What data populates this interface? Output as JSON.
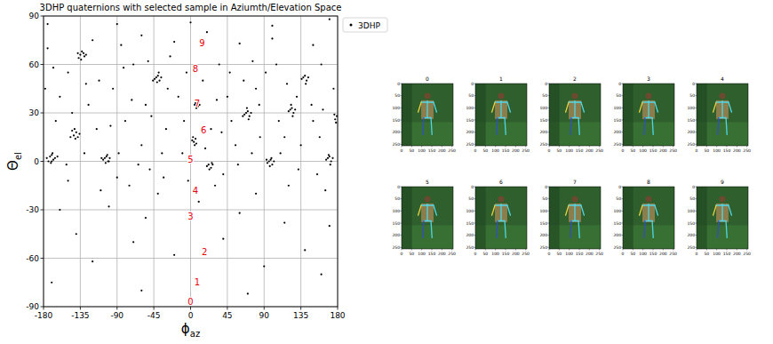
{
  "chart_data": [
    {
      "type": "scatter",
      "title": "3DHP quaternions with selected sample in Aziumth/Elevation Space",
      "x_label": {
        "text": "ϕ",
        "subscript": "az"
      },
      "y_label": {
        "text": "Θ",
        "subscript": "el"
      },
      "xlim": [
        -180,
        180
      ],
      "ylim": [
        -90,
        90
      ],
      "xticks": [
        -180,
        -135,
        -90,
        -45,
        0,
        45,
        90,
        135,
        180
      ],
      "yticks": [
        -90,
        -60,
        -30,
        0,
        30,
        60,
        90
      ],
      "grid": true,
      "legend": "right",
      "series": [
        {
          "name": "3DHP",
          "color": "#000000",
          "marker": "dot",
          "x": [
            -172,
            -168,
            -170,
            -174,
            -166,
            -171,
            -169,
            -176,
            -163,
            -170,
            -143,
            -140,
            -138,
            -145,
            -141,
            -136,
            -142,
            -147,
            -135,
            -131,
            -137,
            -130,
            -133,
            -138,
            -128,
            -134,
            -105,
            -101,
            -103,
            -107,
            -99,
            -104,
            -102,
            -109,
            -100,
            -42,
            -38,
            -40,
            -44,
            -36,
            -41,
            -39,
            -46,
            6,
            9,
            7,
            10,
            5,
            8,
            11,
            4,
            6,
            3,
            7,
            5,
            2,
            22,
            25,
            27,
            23,
            26,
            20,
            68,
            72,
            70,
            66,
            74,
            71,
            69,
            64,
            96,
            100,
            98,
            94,
            102,
            97,
            99,
            93,
            122,
            126,
            124,
            120,
            128,
            125,
            123,
            138,
            142,
            140,
            136,
            144,
            141,
            168,
            172,
            170,
            166,
            174,
            171,
            169,
            177,
            179,
            176,
            178,
            -178,
            -160,
            -150,
            -125,
            -115,
            -95,
            -80,
            -70,
            -60,
            -55,
            -30,
            -25,
            -15,
            -5,
            15,
            25,
            35,
            45,
            55,
            65,
            80,
            85,
            105,
            115,
            130,
            150,
            160,
            175,
            -175,
            -120,
            -85,
            -60,
            -20,
            20,
            60,
            100,
            150,
            -165,
            -130,
            -90,
            -50,
            -35,
            -10,
            40,
            50,
            75,
            110,
            135,
            155,
            -150,
            -110,
            -75,
            -40,
            30,
            80,
            120,
            165,
            -160,
            -100,
            -55,
            10,
            60,
            115,
            170,
            -140,
            -70,
            40,
            140,
            -120,
            -20,
            90,
            160,
            -170,
            -60,
            70,
            -175,
            -90,
            0,
            100,
            170,
            -145,
            -112,
            -88,
            -72,
            -48,
            -28,
            -8,
            18,
            32,
            48,
            58,
            84,
            92,
            108,
            118,
            132,
            148,
            158,
            -168,
            -152,
            -128,
            -98,
            -82,
            -64,
            -52,
            -33,
            -3,
            38,
            76,
            162
          ],
          "values": [
            3,
            1,
            4,
            0,
            2,
            -1,
            5,
            2,
            3,
            0,
            16,
            18,
            15,
            19,
            14,
            17,
            20,
            15,
            66,
            67,
            64,
            65,
            68,
            67,
            66,
            63,
            2,
            0,
            3,
            1,
            2,
            -1,
            4,
            2,
            0,
            52,
            50,
            53,
            51,
            52,
            49,
            55,
            50,
            36,
            34,
            33,
            37,
            35,
            38,
            35,
            12,
            14,
            15,
            11,
            10,
            13,
            -2,
            -4,
            -2,
            -5,
            -1,
            -3,
            30,
            28,
            31,
            29,
            30,
            26,
            33,
            28,
            0,
            -2,
            1,
            -1,
            0,
            -3,
            2,
            1,
            32,
            30,
            33,
            31,
            32,
            28,
            35,
            52,
            50,
            53,
            51,
            52,
            48,
            2,
            0,
            3,
            1,
            2,
            -2,
            4,
            26,
            28,
            29,
            24,
            45,
            40,
            55,
            35,
            20,
            45,
            25,
            60,
            10,
            35,
            20,
            65,
            40,
            55,
            50,
            20,
            60,
            40,
            10,
            50,
            45,
            15,
            60,
            15,
            40,
            25,
            60,
            45,
            70,
            75,
            72,
            78,
            74,
            80,
            73,
            76,
            72,
            25,
            5,
            -10,
            -5,
            5,
            5,
            -8,
            25,
            5,
            5,
            10,
            -8,
            -12,
            -18,
            -15,
            -20,
            -15,
            -20,
            -15,
            -18,
            -30,
            -28,
            -35,
            -25,
            -32,
            -38,
            -40,
            -45,
            -50,
            -48,
            -55,
            -62,
            -58,
            -65,
            -70,
            -75,
            -80,
            -82,
            85,
            85,
            86,
            84,
            88,
            30,
            50,
            5,
            38,
            28,
            45,
            25,
            8,
            38,
            55,
            -2,
            35,
            55,
            25,
            48,
            -5,
            35,
            15,
            58,
            -2,
            48,
            22,
            58,
            -2,
            62,
            -10,
            -12,
            18,
            62,
            32
          ]
        }
      ],
      "annotations": [
        {
          "text": "0",
          "x": 0,
          "y": -87
        },
        {
          "text": "1",
          "x": 8,
          "y": -75
        },
        {
          "text": "2",
          "x": 17,
          "y": -56
        },
        {
          "text": "3",
          "x": 0,
          "y": -34
        },
        {
          "text": "4",
          "x": 6,
          "y": -18
        },
        {
          "text": "5",
          "x": 0,
          "y": 1
        },
        {
          "text": "6",
          "x": 16,
          "y": 19
        },
        {
          "text": "7",
          "x": 8,
          "y": 36
        },
        {
          "text": "8",
          "x": 6,
          "y": 57
        },
        {
          "text": "9",
          "x": 14,
          "y": 73
        }
      ]
    },
    {
      "type": "image",
      "title": "0",
      "xlim": [
        0,
        256
      ],
      "ylim": [
        256,
        0
      ],
      "xticks": [
        0,
        50,
        100,
        150,
        200,
        250
      ],
      "yticks": [
        0,
        50,
        100,
        150,
        200,
        250
      ]
    },
    {
      "type": "image",
      "title": "1",
      "xlim": [
        0,
        256
      ],
      "ylim": [
        256,
        0
      ],
      "xticks": [
        0,
        50,
        100,
        150,
        200,
        250
      ],
      "yticks": [
        0,
        50,
        100,
        150,
        200,
        250
      ]
    },
    {
      "type": "image",
      "title": "2",
      "xlim": [
        0,
        256
      ],
      "ylim": [
        256,
        0
      ],
      "xticks": [
        0,
        50,
        100,
        150,
        200,
        250
      ],
      "yticks": [
        0,
        50,
        100,
        150,
        200,
        250
      ]
    },
    {
      "type": "image",
      "title": "3",
      "xlim": [
        0,
        256
      ],
      "ylim": [
        256,
        0
      ],
      "xticks": [
        0,
        50,
        100,
        150,
        200,
        250
      ],
      "yticks": [
        0,
        50,
        100,
        150,
        200,
        250
      ]
    },
    {
      "type": "image",
      "title": "4",
      "xlim": [
        0,
        256
      ],
      "ylim": [
        256,
        0
      ],
      "xticks": [
        0,
        50,
        100,
        150,
        200,
        250
      ],
      "yticks": [
        0,
        50,
        100,
        150,
        200,
        250
      ]
    },
    {
      "type": "image",
      "title": "5",
      "xlim": [
        0,
        256
      ],
      "ylim": [
        256,
        0
      ],
      "xticks": [
        0,
        50,
        100,
        150,
        200,
        250
      ],
      "yticks": [
        0,
        50,
        100,
        150,
        200,
        250
      ]
    },
    {
      "type": "image",
      "title": "6",
      "xlim": [
        0,
        256
      ],
      "ylim": [
        256,
        0
      ],
      "xticks": [
        0,
        50,
        100,
        150,
        200,
        250
      ],
      "yticks": [
        0,
        50,
        100,
        150,
        200,
        250
      ]
    },
    {
      "type": "image",
      "title": "7",
      "xlim": [
        0,
        256
      ],
      "ylim": [
        256,
        0
      ],
      "xticks": [
        0,
        50,
        100,
        150,
        200,
        250
      ],
      "yticks": [
        0,
        50,
        100,
        150,
        200,
        250
      ]
    },
    {
      "type": "image",
      "title": "8",
      "xlim": [
        0,
        256
      ],
      "ylim": [
        256,
        0
      ],
      "xticks": [
        0,
        50,
        100,
        150,
        200,
        250
      ],
      "yticks": [
        0,
        50,
        100,
        150,
        200,
        250
      ]
    },
    {
      "type": "image",
      "title": "9",
      "xlim": [
        0,
        256
      ],
      "ylim": [
        256,
        0
      ],
      "xticks": [
        0,
        50,
        100,
        150,
        200,
        250
      ],
      "yticks": [
        0,
        50,
        100,
        150,
        200,
        250
      ]
    }
  ]
}
